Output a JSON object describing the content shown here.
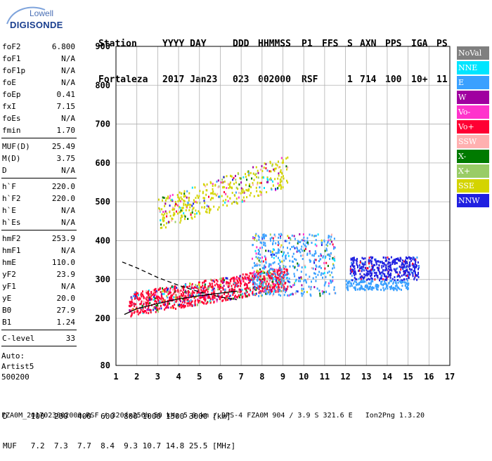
{
  "logo": {
    "line1": "Lowell",
    "line2": "DIGISONDE"
  },
  "header": {
    "labels": [
      "Station",
      "YYYY DAY",
      "DDD",
      "HHMMSS",
      "P1",
      "FFS",
      "S",
      "AXN",
      "PPS",
      "IGA",
      "PS"
    ],
    "values": [
      "Fortaleza",
      "2017 Jan23",
      "023",
      "002000",
      "RSF",
      "",
      "1",
      "714",
      "100",
      "10+",
      "11"
    ]
  },
  "params": {
    "group1": [
      {
        "name": "foF2",
        "value": "6.800"
      },
      {
        "name": "foF1",
        "value": "N/A"
      },
      {
        "name": "foF1p",
        "value": "N/A"
      },
      {
        "name": "foE",
        "value": "N/A"
      },
      {
        "name": "foEp",
        "value": "0.41"
      },
      {
        "name": "fxI",
        "value": "7.15"
      },
      {
        "name": "foEs",
        "value": "N/A"
      },
      {
        "name": "fmin",
        "value": "1.70"
      }
    ],
    "group2": [
      {
        "name": "MUF(D)",
        "value": "25.49"
      },
      {
        "name": "M(D)",
        "value": "3.75"
      },
      {
        "name": "D",
        "value": "N/A"
      }
    ],
    "group3": [
      {
        "name": "h`F",
        "value": "220.0"
      },
      {
        "name": "h`F2",
        "value": "220.0"
      },
      {
        "name": "h`E",
        "value": "N/A"
      },
      {
        "name": "h`Es",
        "value": "N/A"
      }
    ],
    "group4": [
      {
        "name": "hmF2",
        "value": "253.9"
      },
      {
        "name": "hmF1",
        "value": "N/A"
      },
      {
        "name": "hmE",
        "value": "110.0"
      },
      {
        "name": "yF2",
        "value": "23.9"
      },
      {
        "name": "yF1",
        "value": "N/A"
      },
      {
        "name": "yE",
        "value": "20.0"
      },
      {
        "name": "B0",
        "value": "27.9"
      },
      {
        "name": "B1",
        "value": "1.24"
      }
    ],
    "clevel": {
      "name": "C-level",
      "value": "33"
    },
    "auto": [
      "Auto:",
      "Artist5",
      "500200"
    ]
  },
  "legend": [
    {
      "label": "NoVal",
      "bg": "#7f7f7f",
      "fg": "#ffffff"
    },
    {
      "label": "NNE",
      "bg": "#00e5ff",
      "fg": "#ffffff"
    },
    {
      "label": "E",
      "bg": "#3aa0ff",
      "fg": "#ffffff"
    },
    {
      "label": "W",
      "bg": "#a000a0",
      "fg": "#ffffff"
    },
    {
      "label": "Vo-",
      "bg": "#ff33cc",
      "fg": "#ffffff"
    },
    {
      "label": "Vo+",
      "bg": "#ff0033",
      "fg": "#ffffff"
    },
    {
      "label": "SSW",
      "bg": "#ffb0b0",
      "fg": "#ffffff"
    },
    {
      "label": "X-",
      "bg": "#007a00",
      "fg": "#ffffff"
    },
    {
      "label": "X+",
      "bg": "#99cc66",
      "fg": "#ffffff"
    },
    {
      "label": "SSE",
      "bg": "#d4d400",
      "fg": "#ffffff"
    },
    {
      "label": "NNW",
      "bg": "#2020e0",
      "fg": "#ffffff"
    }
  ],
  "footer": {
    "line1": "D     100  200  400  600  800 1000 1500 3000 [km]",
    "line2": "MUF   7.2  7.3  7.7  8.4  9.3 10.7 14.8 25.5 [MHz]",
    "bottom": "FZA0M_2017023002000.RSF / 320fx256h 50 kHz 5.0 km / DPS-4 FZA0M 904 / 3.9 S 321.6 E   Ion2Png 1.3.20"
  },
  "chart_data": {
    "type": "scatter",
    "xlim": [
      1,
      17
    ],
    "ylim": [
      80,
      900
    ],
    "xticks": [
      1,
      2,
      3,
      4,
      5,
      6,
      7,
      8,
      9,
      10,
      11,
      12,
      13,
      14,
      15,
      16,
      17
    ],
    "yticks": [
      80,
      200,
      300,
      400,
      500,
      600,
      700,
      800,
      900
    ],
    "grid": true,
    "clusters": [
      {
        "name": "O-trace F region",
        "x_range": [
          1.6,
          9.2
        ],
        "y_range": [
          220,
          320
        ],
        "color": "#ff0033"
      },
      {
        "name": "second-hop",
        "x_range": [
          3.0,
          9.2
        ],
        "y_range": [
          450,
          640
        ],
        "color": "#d4d400"
      },
      {
        "name": "spread F",
        "x_range": [
          7.5,
          11.5
        ],
        "y_range": [
          260,
          420
        ],
        "color": "#3aa0ff"
      },
      {
        "name": "NNW echoes",
        "x_range": [
          12.2,
          15.5
        ],
        "y_range": [
          300,
          360
        ],
        "color": "#2020e0"
      },
      {
        "name": "E echoes",
        "x_range": [
          12.0,
          15.0
        ],
        "y_range": [
          275,
          300
        ],
        "color": "#3aa0ff"
      }
    ],
    "profile_solid": [
      [
        1.4,
        210
      ],
      [
        2,
        225
      ],
      [
        3,
        238
      ],
      [
        4,
        250
      ],
      [
        5,
        258
      ],
      [
        6,
        265
      ],
      [
        6.8,
        270
      ]
    ],
    "profile_dashed": [
      [
        1.3,
        345
      ],
      [
        2,
        330
      ],
      [
        3,
        305
      ],
      [
        4,
        285
      ],
      [
        5,
        268
      ],
      [
        6,
        255
      ],
      [
        6.8,
        248
      ]
    ]
  }
}
